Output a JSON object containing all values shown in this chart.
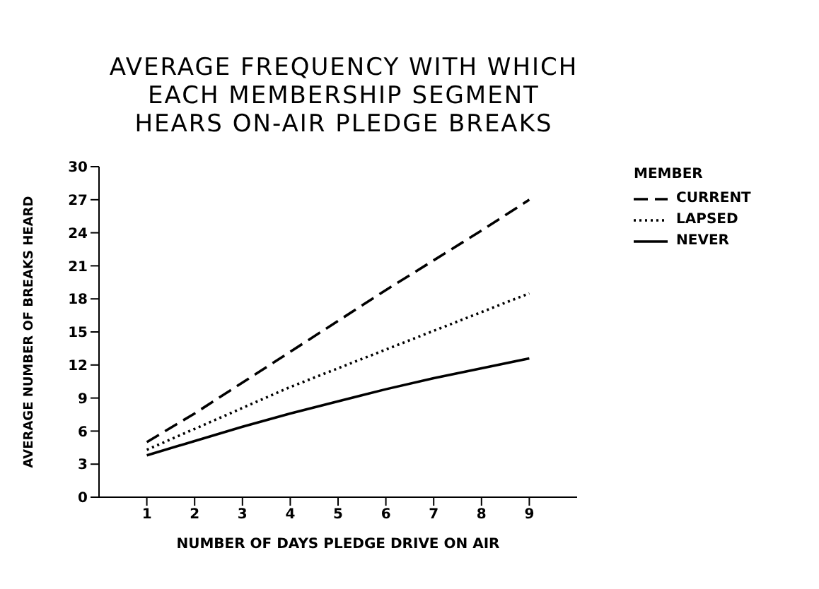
{
  "chart_data": {
    "type": "line",
    "title": "AVERAGE FREQUENCY WITH WHICH\nEACH MEMBERSHIP SEGMENT\nHEARS ON-AIR PLEDGE BREAKS",
    "xlabel": "NUMBER OF DAYS PLEDGE DRIVE ON AIR",
    "ylabel": "AVERAGE NUMBER OF BREAKS HEARD",
    "legend_title": "MEMBER",
    "legend": "right",
    "marker": "none",
    "grid": false,
    "x": [
      1,
      2,
      3,
      4,
      5,
      6,
      7,
      8,
      9
    ],
    "xlim": [
      0,
      10
    ],
    "xticks": [
      1,
      2,
      3,
      4,
      5,
      6,
      7,
      8,
      9
    ],
    "ylim": [
      0,
      30
    ],
    "yticks": [
      0,
      3,
      6,
      9,
      12,
      15,
      18,
      21,
      24,
      27,
      30
    ],
    "series": [
      {
        "name": "CURRENT",
        "color": "#000000",
        "line_style": "dashed",
        "values": [
          5,
          7.6,
          10.4,
          13.2,
          16,
          18.8,
          21.5,
          24.2,
          27
        ]
      },
      {
        "name": "LAPSED",
        "color": "#000000",
        "line_style": "dotted",
        "values": [
          4.3,
          6.2,
          8.1,
          10,
          11.7,
          13.4,
          15.1,
          16.8,
          18.5
        ]
      },
      {
        "name": "NEVER",
        "color": "#000000",
        "line_style": "solid",
        "values": [
          3.8,
          5.1,
          6.4,
          7.6,
          8.7,
          9.8,
          10.8,
          11.7,
          12.6
        ]
      }
    ]
  }
}
